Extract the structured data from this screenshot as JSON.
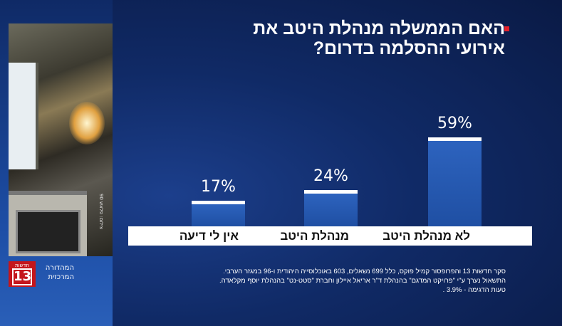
{
  "title": "האם הממשלה מנהלת היטב את אירועי ההסלמה בדרום?",
  "photo_credit": "צילום: פלאש 90",
  "logo": {
    "small": "חדשות",
    "number": "13"
  },
  "program": "המהדורה המרכזית",
  "footnote": [
    "סקר חדשות 13 והפרופסור קמיל פוקס, כלל 699 נשאלים, 603 באוכלוסייה היהודית ו-96 במגזר הערבי.",
    "התשאול נערך ע\"י \"פרויקט המדגם\" בהנהלת ד\"ר אריאל איילון וחברת \"סטט-נט\" בהנהלת יוסף מקלאדה.",
    "טעות הדגימה - 3.9% ."
  ],
  "colors": {
    "bar": "#2d63be",
    "accent": "#e5202a",
    "background": "#102a66"
  },
  "chart_data": {
    "type": "bar",
    "title": "האם הממשלה מנהלת היטב את אירועי ההסלמה בדרום?",
    "categories": [
      "אין לי דיעה",
      "מנהלת היטב",
      "לא מנהלת היטב"
    ],
    "values": [
      17,
      24,
      59
    ],
    "value_labels": [
      "17%",
      "24%",
      "59%"
    ],
    "unit": "%",
    "ylim": [
      0,
      100
    ],
    "grid": false
  }
}
